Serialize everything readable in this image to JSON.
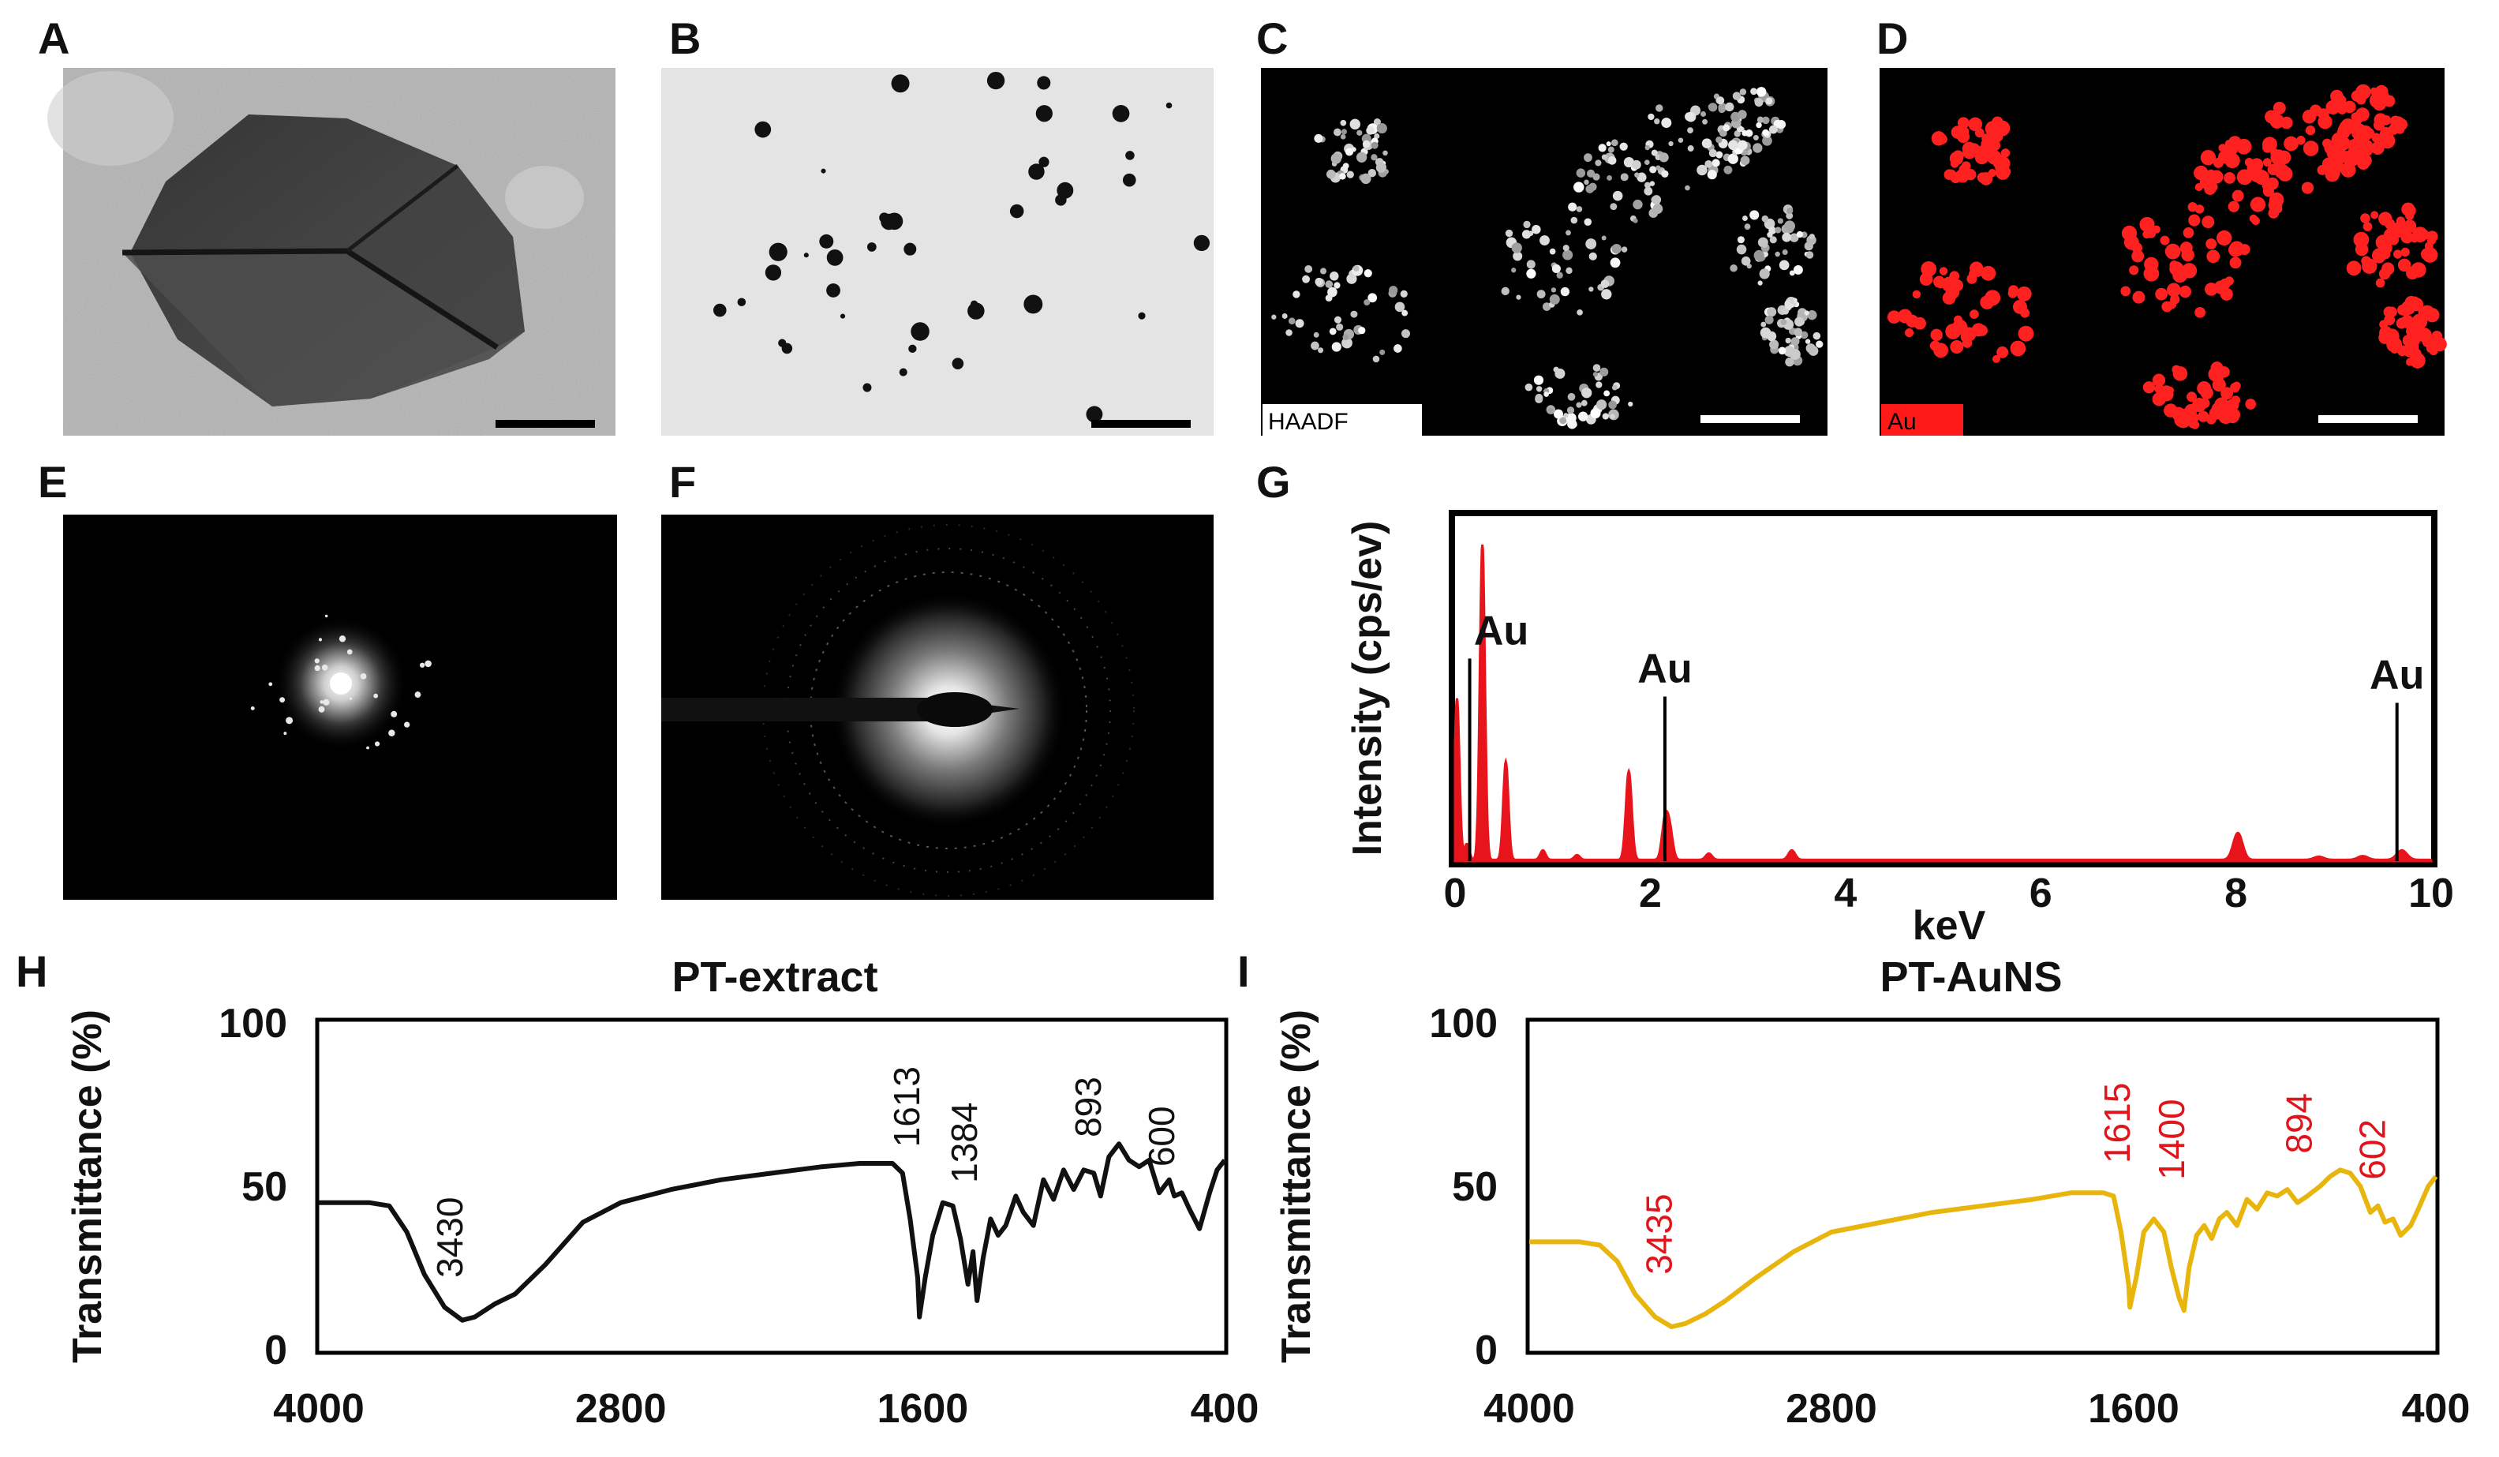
{
  "panel_labels": [
    "A",
    "B",
    "C",
    "D",
    "E",
    "F",
    "G",
    "H",
    "I"
  ],
  "colors": {
    "eds": "#e8141b",
    "ftir_extract": "#111111",
    "ftir_auns": "#e8b50c",
    "annot_auns": "#e0141b",
    "au_map": "#ff2020"
  },
  "images": {
    "A": {
      "description_icon": "tem-nanoparticle-image"
    },
    "B": {
      "description_icon": "tem-dispersion-image"
    },
    "C": {
      "tag": "HAADF"
    },
    "D": {
      "tag": "Au"
    },
    "E": {
      "description_icon": "fft-pattern-image"
    },
    "F": {
      "description_icon": "saed-pattern-image"
    }
  },
  "chart_data": [
    {
      "id": "G",
      "type": "line",
      "xlabel": "keV",
      "ylabel": "Intensity (cps/ev)",
      "xlim": [
        0,
        10
      ],
      "ylim": [
        0,
        1
      ],
      "xticks": [
        0,
        2,
        4,
        6,
        8,
        10
      ],
      "peaks": [
        {
          "x": 0.02,
          "y": 0.51
        },
        {
          "x": 0.12,
          "y": 0.05
        },
        {
          "x": 0.28,
          "y": 1.0
        },
        {
          "x": 0.52,
          "y": 0.31
        },
        {
          "x": 0.9,
          "y": 0.03
        },
        {
          "x": 1.25,
          "y": 0.015
        },
        {
          "x": 1.78,
          "y": 0.28
        },
        {
          "x": 2.15,
          "y": 0.12
        },
        {
          "x": 2.2,
          "y": 0.09
        },
        {
          "x": 2.6,
          "y": 0.02
        },
        {
          "x": 3.45,
          "y": 0.03
        },
        {
          "x": 8.02,
          "y": 0.085
        },
        {
          "x": 8.85,
          "y": 0.01
        },
        {
          "x": 9.3,
          "y": 0.012
        },
        {
          "x": 9.7,
          "y": 0.03
        }
      ],
      "markers": [
        {
          "label": "Au",
          "x": 0.15,
          "height": 0.64
        },
        {
          "label": "Au",
          "x": 2.15,
          "height": 0.52
        },
        {
          "label": "Au",
          "x": 9.65,
          "height": 0.5
        }
      ]
    },
    {
      "id": "H",
      "type": "line",
      "title": "PT-extract",
      "xlabel": "",
      "ylabel": "Transmittance (%)",
      "xlim": [
        4000,
        400
      ],
      "ylim": [
        0,
        100
      ],
      "xticks": [
        4000,
        2800,
        1600,
        400
      ],
      "yticks": [
        0,
        50,
        100
      ],
      "series": [
        {
          "x": [
            4000,
            3800,
            3720,
            3650,
            3580,
            3500,
            3430,
            3380,
            3300,
            3220,
            3100,
            2950,
            2800,
            2600,
            2400,
            2200,
            2000,
            1850,
            1720,
            1680,
            1650,
            1620,
            1613,
            1590,
            1560,
            1520,
            1480,
            1450,
            1420,
            1400,
            1384,
            1360,
            1330,
            1300,
            1270,
            1230,
            1200,
            1160,
            1120,
            1080,
            1040,
            1000,
            960,
            920,
            893,
            860,
            820,
            780,
            740,
            700,
            660,
            620,
            600,
            570,
            540,
            500,
            460,
            430,
            400
          ],
          "y": [
            45,
            45,
            44,
            36,
            23,
            13,
            9,
            10,
            14,
            17,
            26,
            39,
            45,
            49,
            52,
            54,
            56,
            57,
            57,
            54,
            40,
            22,
            10,
            22,
            35,
            45,
            44,
            34,
            20,
            30,
            15,
            28,
            40,
            35,
            38,
            47,
            42,
            38,
            52,
            46,
            55,
            49,
            55,
            54,
            47,
            59,
            63,
            58,
            56,
            58,
            48,
            52,
            47,
            48,
            43,
            37,
            48,
            55,
            58
          ]
        }
      ],
      "annotations": [
        {
          "text": "3430",
          "x": 3430,
          "y": 22
        },
        {
          "text": "1613",
          "x": 1613,
          "y": 62
        },
        {
          "text": "1384",
          "x": 1384,
          "y": 51
        },
        {
          "text": "893",
          "x": 893,
          "y": 65
        },
        {
          "text": "600",
          "x": 600,
          "y": 56
        }
      ]
    },
    {
      "id": "I",
      "type": "line",
      "title": "PT-AuNS",
      "xlabel": "",
      "ylabel": "Transmittance (%)",
      "xlim": [
        4000,
        400
      ],
      "ylim": [
        0,
        100
      ],
      "xticks": [
        4000,
        2800,
        1600,
        400
      ],
      "yticks": [
        0,
        50,
        100
      ],
      "series": [
        {
          "x": [
            4000,
            3800,
            3720,
            3650,
            3580,
            3500,
            3435,
            3380,
            3300,
            3220,
            3100,
            2950,
            2800,
            2600,
            2400,
            2200,
            2000,
            1850,
            1720,
            1680,
            1650,
            1620,
            1615,
            1590,
            1560,
            1520,
            1480,
            1450,
            1420,
            1400,
            1380,
            1350,
            1320,
            1290,
            1260,
            1230,
            1190,
            1150,
            1110,
            1070,
            1030,
            990,
            950,
            910,
            894,
            860,
            820,
            780,
            740,
            700,
            660,
            630,
            602,
            570,
            540,
            500,
            470,
            430,
            400
          ],
          "y": [
            33,
            33,
            32,
            27,
            17,
            10,
            7,
            8,
            11,
            15,
            22,
            30,
            36,
            39,
            42,
            44,
            46,
            48,
            48,
            47,
            36,
            20,
            13,
            22,
            36,
            40,
            36,
            25,
            16,
            12,
            25,
            35,
            38,
            34,
            40,
            42,
            38,
            46,
            43,
            48,
            47,
            49,
            45,
            47,
            48,
            50,
            53,
            55,
            54,
            50,
            42,
            44,
            39,
            40,
            35,
            38,
            43,
            50,
            53
          ]
        }
      ],
      "annotations": [
        {
          "text": "3435",
          "x": 3435,
          "y": 23
        },
        {
          "text": "1615",
          "x": 1615,
          "y": 57
        },
        {
          "text": "1400",
          "x": 1400,
          "y": 52
        },
        {
          "text": "894",
          "x": 894,
          "y": 60
        },
        {
          "text": "602",
          "x": 602,
          "y": 52
        }
      ]
    }
  ]
}
